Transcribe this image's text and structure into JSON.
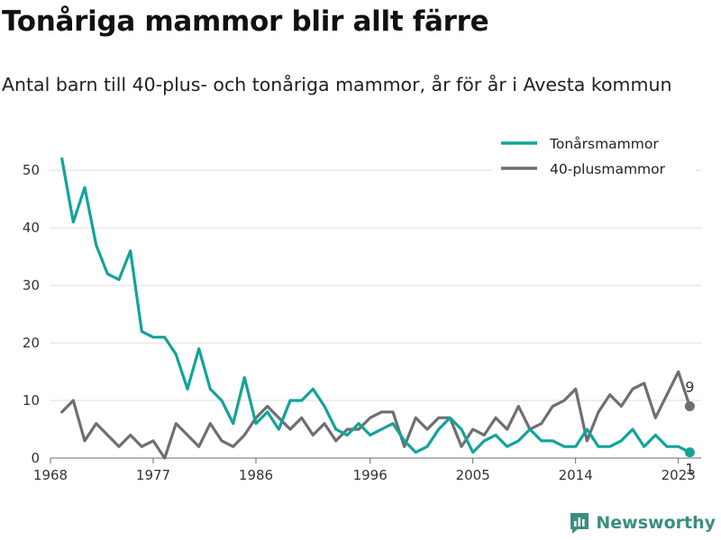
{
  "chart_data": {
    "type": "line",
    "title": "Tonåriga mammor blir allt färre",
    "subtitle": "Antal barn till 40-plus- och tonåriga mammor, år för år i Avesta kommun",
    "x": [
      1969,
      1970,
      1971,
      1972,
      1973,
      1974,
      1975,
      1976,
      1977,
      1978,
      1979,
      1980,
      1981,
      1982,
      1983,
      1984,
      1985,
      1986,
      1987,
      1988,
      1989,
      1990,
      1991,
      1992,
      1993,
      1994,
      1995,
      1996,
      1997,
      1998,
      1999,
      2000,
      2001,
      2002,
      2003,
      2004,
      2005,
      2006,
      2007,
      2008,
      2009,
      2010,
      2011,
      2012,
      2013,
      2014,
      2015,
      2016,
      2017,
      2018,
      2019,
      2020,
      2021,
      2022,
      2023,
      2024
    ],
    "series": [
      {
        "name": "Tonårsmammor",
        "color": "#12a39a",
        "values": [
          52,
          41,
          47,
          37,
          32,
          31,
          36,
          22,
          21,
          21,
          18,
          12,
          19,
          12,
          10,
          6,
          14,
          6,
          8,
          5,
          10,
          10,
          12,
          9,
          5,
          4,
          6,
          4,
          5,
          6,
          3,
          1,
          2,
          5,
          7,
          5,
          1,
          3,
          4,
          2,
          3,
          5,
          3,
          3,
          2,
          2,
          5,
          2,
          2,
          3,
          5,
          2,
          4,
          2,
          2,
          1
        ]
      },
      {
        "name": "40-plusmammor",
        "color": "#6e6e73",
        "values": [
          8,
          10,
          3,
          6,
          4,
          2,
          4,
          2,
          3,
          0,
          6,
          4,
          2,
          6,
          3,
          2,
          4,
          7,
          9,
          7,
          5,
          7,
          4,
          6,
          3,
          5,
          5,
          7,
          8,
          8,
          2,
          7,
          5,
          7,
          7,
          2,
          5,
          4,
          7,
          5,
          9,
          5,
          6,
          9,
          10,
          12,
          3,
          8,
          11,
          9,
          12,
          13,
          7,
          11,
          15,
          9
        ]
      }
    ],
    "x_ticks": [
      1968,
      1977,
      1986,
      1996,
      2005,
      2014,
      2023
    ],
    "y_ticks": [
      0,
      10,
      20,
      30,
      40,
      50
    ],
    "xlim": [
      1968,
      2025
    ],
    "ylim": [
      0,
      53
    ],
    "end_labels": {
      "Tonårsmammor": "1",
      "40-plusmammor": "9"
    },
    "legend_position": "top-right",
    "grid": "horizontal"
  },
  "branding": {
    "name": "Newsworthy",
    "logo_icon": "bar-chart-logo-icon",
    "color": "#3a8f7f"
  }
}
